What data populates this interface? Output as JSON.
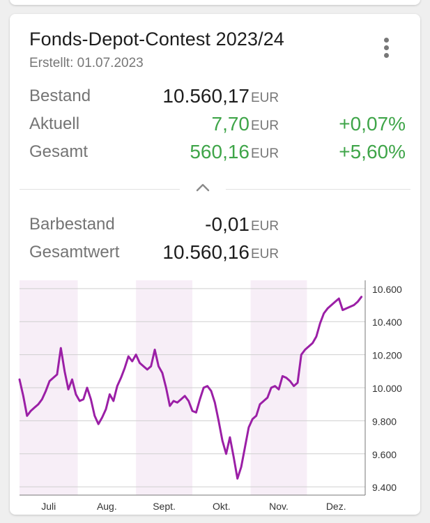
{
  "card": {
    "title": "Fonds-Depot-Contest 2023/24",
    "created": "Erstellt: 01.07.2023",
    "menu_icon": "more-vert-icon",
    "toggle_icon": "chevron-up-icon"
  },
  "summary": [
    {
      "label": "Bestand",
      "value": "10.560,17",
      "unit": "EUR",
      "pct": "",
      "positive": false
    },
    {
      "label": "Aktuell",
      "value": "7,70",
      "unit": "EUR",
      "pct": "+0,07%",
      "positive": true
    },
    {
      "label": "Gesamt",
      "value": "560,16",
      "unit": "EUR",
      "pct": "+5,60%",
      "positive": true
    }
  ],
  "details": [
    {
      "label": "Barbestand",
      "value": "-0,01",
      "unit": "EUR"
    },
    {
      "label": "Gesamtwert",
      "value": "10.560,16",
      "unit": "EUR"
    }
  ],
  "colors": {
    "positive": "#3fa549",
    "line": "#9b1fa6",
    "band": "#f7eef7",
    "grid": "#cfcfcf"
  },
  "chart_data": {
    "type": "line",
    "title": "",
    "xlabel": "",
    "ylabel": "",
    "ylim": [
      9350,
      10650
    ],
    "yticks": [
      9400,
      9600,
      9800,
      10000,
      10200,
      10400,
      10600
    ],
    "ytick_labels": [
      "9.400",
      "9.600",
      "9.800",
      "10.000",
      "10.200",
      "10.400",
      "10.600"
    ],
    "months": [
      "Juli",
      "Aug.",
      "Sept.",
      "Okt.",
      "Nov.",
      "Dez."
    ],
    "shaded_months": [
      "Juli",
      "Sept.",
      "Nov."
    ],
    "series": [
      {
        "name": "",
        "x": [
          "2023-07-01",
          "2023-07-03",
          "2023-07-05",
          "2023-07-07",
          "2023-07-09",
          "2023-07-11",
          "2023-07-13",
          "2023-07-15",
          "2023-07-17",
          "2023-07-19",
          "2023-07-21",
          "2023-07-23",
          "2023-07-25",
          "2023-07-27",
          "2023-07-29",
          "2023-07-31",
          "2023-08-02",
          "2023-08-04",
          "2023-08-06",
          "2023-08-08",
          "2023-08-10",
          "2023-08-12",
          "2023-08-14",
          "2023-08-16",
          "2023-08-18",
          "2023-08-20",
          "2023-08-22",
          "2023-08-24",
          "2023-08-26",
          "2023-08-28",
          "2023-08-30",
          "2023-09-01",
          "2023-09-03",
          "2023-09-05",
          "2023-09-07",
          "2023-09-09",
          "2023-09-11",
          "2023-09-13",
          "2023-09-15",
          "2023-09-17",
          "2023-09-19",
          "2023-09-21",
          "2023-09-23",
          "2023-09-25",
          "2023-09-27",
          "2023-09-29",
          "2023-10-01",
          "2023-10-03",
          "2023-10-05",
          "2023-10-07",
          "2023-10-09",
          "2023-10-11",
          "2023-10-13",
          "2023-10-15",
          "2023-10-17",
          "2023-10-19",
          "2023-10-21",
          "2023-10-23",
          "2023-10-25",
          "2023-10-27",
          "2023-10-29",
          "2023-10-31",
          "2023-11-02",
          "2023-11-04",
          "2023-11-06",
          "2023-11-08",
          "2023-11-10",
          "2023-11-12",
          "2023-11-14",
          "2023-11-16",
          "2023-11-18",
          "2023-11-20",
          "2023-11-22",
          "2023-11-24",
          "2023-11-26",
          "2023-11-28",
          "2023-11-30",
          "2023-12-02",
          "2023-12-04",
          "2023-12-06",
          "2023-12-08",
          "2023-12-10",
          "2023-12-12",
          "2023-12-14",
          "2023-12-16",
          "2023-12-18",
          "2023-12-20",
          "2023-12-22",
          "2023-12-24",
          "2023-12-26",
          "2023-12-28",
          "2023-12-30"
        ],
        "y": [
          10050,
          9950,
          9830,
          9860,
          9880,
          9900,
          9930,
          9980,
          10040,
          10060,
          10080,
          10240,
          10100,
          9990,
          10050,
          9960,
          9920,
          9930,
          10000,
          9930,
          9830,
          9780,
          9820,
          9870,
          9960,
          9920,
          10010,
          10060,
          10120,
          10190,
          10160,
          10200,
          10150,
          10130,
          10110,
          10130,
          10230,
          10130,
          10090,
          10000,
          9890,
          9920,
          9910,
          9930,
          9950,
          9920,
          9860,
          9850,
          9930,
          10000,
          10010,
          9980,
          9910,
          9800,
          9680,
          9600,
          9700,
          9580,
          9450,
          9520,
          9640,
          9760,
          9810,
          9830,
          9900,
          9920,
          9940,
          10000,
          10010,
          9990,
          10070,
          10060,
          10040,
          10010,
          10030,
          10200,
          10230,
          10250,
          10270,
          10310,
          10390,
          10450,
          10480,
          10500,
          10520,
          10540,
          10470,
          10480,
          10490,
          10500,
          10520,
          10550
        ]
      }
    ]
  }
}
